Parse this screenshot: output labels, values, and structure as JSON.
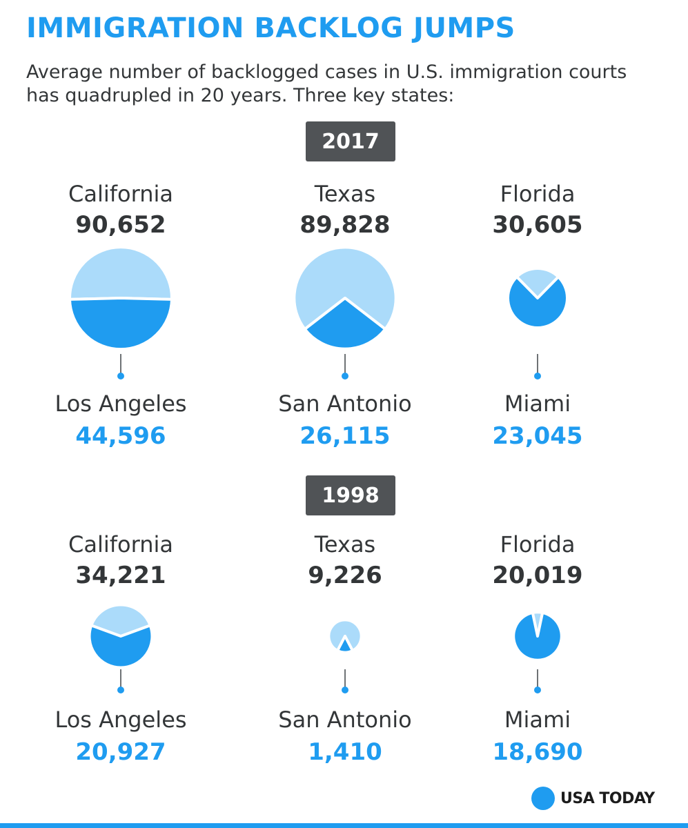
{
  "title": "IMMIGRATION BACKLOG JUMPS",
  "subtitle": "Average number of backlogged cases in U.S. immigration courts has quadrupled in 20 years. Three key states:",
  "logo": {
    "text": "USA TODAY"
  },
  "colors": {
    "state_slice": "#abdbfa",
    "city_slice": "#1f9cf0",
    "state_text": "#333638",
    "city_text": "#1f9cf0",
    "badge": "#505356"
  },
  "chart_data": {
    "type": "pie",
    "title": "IMMIGRATION BACKLOG JUMPS",
    "panels": [
      {
        "year": "2017",
        "items": [
          {
            "state": "California",
            "state_value": 90652,
            "state_label": "90,652",
            "city": "Los Angeles",
            "city_value": 44596,
            "city_label": "44,596"
          },
          {
            "state": "Texas",
            "state_value": 89828,
            "state_label": "89,828",
            "city": "San Antonio",
            "city_value": 26115,
            "city_label": "26,115"
          },
          {
            "state": "Florida",
            "state_value": 30605,
            "state_label": "30,605",
            "city": "Miami",
            "city_value": 23045,
            "city_label": "23,045"
          }
        ]
      },
      {
        "year": "1998",
        "items": [
          {
            "state": "California",
            "state_value": 34221,
            "state_label": "34,221",
            "city": "Los Angeles",
            "city_value": 20927,
            "city_label": "20,927"
          },
          {
            "state": "Texas",
            "state_value": 9226,
            "state_label": "9,226",
            "city": "San Antonio",
            "city_value": 1410,
            "city_label": "1,410"
          },
          {
            "state": "Florida",
            "state_value": 20019,
            "state_label": "20,019",
            "city": "Miami",
            "city_value": 18690,
            "city_label": "18,690"
          }
        ]
      }
    ]
  }
}
